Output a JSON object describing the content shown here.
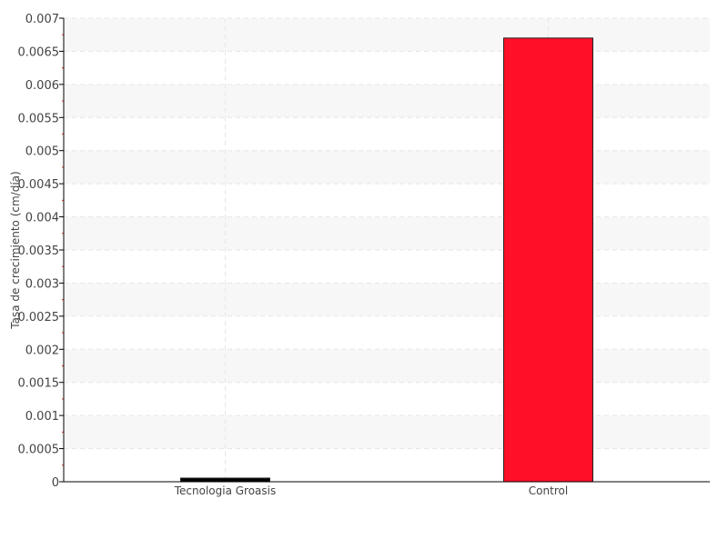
{
  "chart_data": {
    "type": "bar",
    "title": "",
    "xlabel": "",
    "ylabel": "Tasa de crecimiento (cm/día)",
    "categories": [
      "Tecnologia Groasis",
      "Control"
    ],
    "values": [
      0.0,
      0.0067
    ],
    "bar_colors": [
      "#000000",
      "#ff1028"
    ],
    "ylim": [
      0,
      0.007
    ],
    "yticks": [
      "0",
      "0.0005",
      "0.001",
      "0.0015",
      "0.002",
      "0.0025",
      "0.003",
      "0.0035",
      "0.004",
      "0.0045",
      "0.005",
      "0.0055",
      "0.006",
      "0.0065",
      "0.007"
    ],
    "grid": true,
    "legend": "none"
  }
}
